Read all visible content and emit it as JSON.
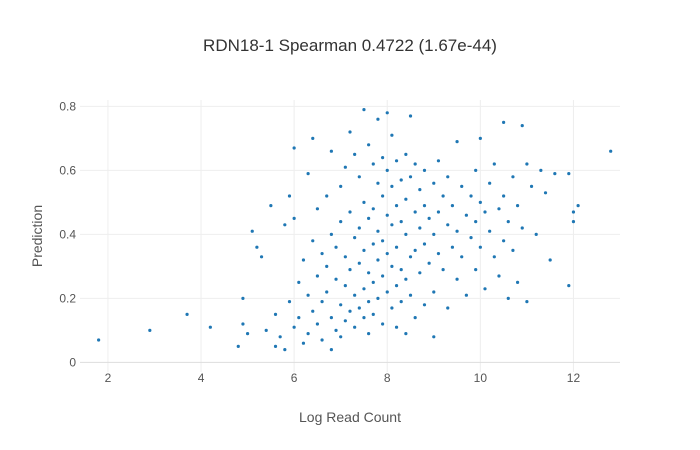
{
  "chart_data": {
    "type": "scatter",
    "title": "RDN18-1 Spearman 0.4722 (1.67e-44)",
    "xlabel": "Log Read Count",
    "ylabel": "Prediction",
    "xlim": [
      1.4,
      13.0
    ],
    "ylim": [
      -0.03,
      0.82
    ],
    "xticks": [
      "2",
      "4",
      "6",
      "8",
      "10",
      "12"
    ],
    "yticks": [
      "0",
      "0.2",
      "0.4",
      "0.6",
      "0.8"
    ],
    "grid": true,
    "legend": "none",
    "marker_color": "#1f77b4",
    "points": [
      {
        "x": 1.8,
        "y": 0.07
      },
      {
        "x": 2.9,
        "y": 0.1
      },
      {
        "x": 3.7,
        "y": 0.15
      },
      {
        "x": 4.2,
        "y": 0.11
      },
      {
        "x": 4.8,
        "y": 0.05
      },
      {
        "x": 4.9,
        "y": 0.2
      },
      {
        "x": 4.9,
        "y": 0.12
      },
      {
        "x": 5.0,
        "y": 0.09
      },
      {
        "x": 5.1,
        "y": 0.41
      },
      {
        "x": 5.2,
        "y": 0.36
      },
      {
        "x": 5.3,
        "y": 0.33
      },
      {
        "x": 5.4,
        "y": 0.1
      },
      {
        "x": 5.5,
        "y": 0.49
      },
      {
        "x": 5.6,
        "y": 0.05
      },
      {
        "x": 5.6,
        "y": 0.15
      },
      {
        "x": 5.7,
        "y": 0.08
      },
      {
        "x": 5.8,
        "y": 0.04
      },
      {
        "x": 5.8,
        "y": 0.43
      },
      {
        "x": 5.9,
        "y": 0.52
      },
      {
        "x": 5.9,
        "y": 0.19
      },
      {
        "x": 6.0,
        "y": 0.45
      },
      {
        "x": 6.0,
        "y": 0.11
      },
      {
        "x": 6.0,
        "y": 0.67
      },
      {
        "x": 6.1,
        "y": 0.25
      },
      {
        "x": 6.1,
        "y": 0.14
      },
      {
        "x": 6.2,
        "y": 0.06
      },
      {
        "x": 6.2,
        "y": 0.32
      },
      {
        "x": 6.3,
        "y": 0.59
      },
      {
        "x": 6.3,
        "y": 0.21
      },
      {
        "x": 6.3,
        "y": 0.09
      },
      {
        "x": 6.4,
        "y": 0.7
      },
      {
        "x": 6.4,
        "y": 0.38
      },
      {
        "x": 6.4,
        "y": 0.16
      },
      {
        "x": 6.5,
        "y": 0.48
      },
      {
        "x": 6.5,
        "y": 0.27
      },
      {
        "x": 6.5,
        "y": 0.12
      },
      {
        "x": 6.6,
        "y": 0.34
      },
      {
        "x": 6.6,
        "y": 0.19
      },
      {
        "x": 6.6,
        "y": 0.07
      },
      {
        "x": 6.7,
        "y": 0.52
      },
      {
        "x": 6.7,
        "y": 0.3
      },
      {
        "x": 6.7,
        "y": 0.22
      },
      {
        "x": 6.8,
        "y": 0.66
      },
      {
        "x": 6.8,
        "y": 0.4
      },
      {
        "x": 6.8,
        "y": 0.14
      },
      {
        "x": 6.8,
        "y": 0.04
      },
      {
        "x": 6.9,
        "y": 0.36
      },
      {
        "x": 6.9,
        "y": 0.26
      },
      {
        "x": 6.9,
        "y": 0.1
      },
      {
        "x": 7.0,
        "y": 0.55
      },
      {
        "x": 7.0,
        "y": 0.44
      },
      {
        "x": 7.0,
        "y": 0.18
      },
      {
        "x": 7.0,
        "y": 0.08
      },
      {
        "x": 7.1,
        "y": 0.61
      },
      {
        "x": 7.1,
        "y": 0.33
      },
      {
        "x": 7.1,
        "y": 0.24
      },
      {
        "x": 7.1,
        "y": 0.13
      },
      {
        "x": 7.2,
        "y": 0.72
      },
      {
        "x": 7.2,
        "y": 0.47
      },
      {
        "x": 7.2,
        "y": 0.29
      },
      {
        "x": 7.2,
        "y": 0.16
      },
      {
        "x": 7.3,
        "y": 0.65
      },
      {
        "x": 7.3,
        "y": 0.39
      },
      {
        "x": 7.3,
        "y": 0.21
      },
      {
        "x": 7.3,
        "y": 0.11
      },
      {
        "x": 7.4,
        "y": 0.58
      },
      {
        "x": 7.4,
        "y": 0.42
      },
      {
        "x": 7.4,
        "y": 0.31
      },
      {
        "x": 7.4,
        "y": 0.17
      },
      {
        "x": 7.5,
        "y": 0.79
      },
      {
        "x": 7.5,
        "y": 0.5
      },
      {
        "x": 7.5,
        "y": 0.35
      },
      {
        "x": 7.5,
        "y": 0.23
      },
      {
        "x": 7.5,
        "y": 0.14
      },
      {
        "x": 7.6,
        "y": 0.68
      },
      {
        "x": 7.6,
        "y": 0.45
      },
      {
        "x": 7.6,
        "y": 0.28
      },
      {
        "x": 7.6,
        "y": 0.19
      },
      {
        "x": 7.6,
        "y": 0.09
      },
      {
        "x": 7.7,
        "y": 0.62
      },
      {
        "x": 7.7,
        "y": 0.48
      },
      {
        "x": 7.7,
        "y": 0.37
      },
      {
        "x": 7.7,
        "y": 0.25
      },
      {
        "x": 7.7,
        "y": 0.15
      },
      {
        "x": 7.8,
        "y": 0.76
      },
      {
        "x": 7.8,
        "y": 0.56
      },
      {
        "x": 7.8,
        "y": 0.41
      },
      {
        "x": 7.8,
        "y": 0.32
      },
      {
        "x": 7.8,
        "y": 0.2
      },
      {
        "x": 7.9,
        "y": 0.64
      },
      {
        "x": 7.9,
        "y": 0.52
      },
      {
        "x": 7.9,
        "y": 0.38
      },
      {
        "x": 7.9,
        "y": 0.27
      },
      {
        "x": 7.9,
        "y": 0.12
      },
      {
        "x": 8.0,
        "y": 0.78
      },
      {
        "x": 8.0,
        "y": 0.6
      },
      {
        "x": 8.0,
        "y": 0.46
      },
      {
        "x": 8.0,
        "y": 0.34
      },
      {
        "x": 8.0,
        "y": 0.22
      },
      {
        "x": 8.1,
        "y": 0.71
      },
      {
        "x": 8.1,
        "y": 0.55
      },
      {
        "x": 8.1,
        "y": 0.43
      },
      {
        "x": 8.1,
        "y": 0.3
      },
      {
        "x": 8.1,
        "y": 0.17
      },
      {
        "x": 8.2,
        "y": 0.63
      },
      {
        "x": 8.2,
        "y": 0.49
      },
      {
        "x": 8.2,
        "y": 0.36
      },
      {
        "x": 8.2,
        "y": 0.24
      },
      {
        "x": 8.2,
        "y": 0.11
      },
      {
        "x": 8.3,
        "y": 0.57
      },
      {
        "x": 8.3,
        "y": 0.44
      },
      {
        "x": 8.3,
        "y": 0.29
      },
      {
        "x": 8.3,
        "y": 0.19
      },
      {
        "x": 8.4,
        "y": 0.65
      },
      {
        "x": 8.4,
        "y": 0.51
      },
      {
        "x": 8.4,
        "y": 0.4
      },
      {
        "x": 8.4,
        "y": 0.26
      },
      {
        "x": 8.4,
        "y": 0.09
      },
      {
        "x": 8.5,
        "y": 0.77
      },
      {
        "x": 8.5,
        "y": 0.58
      },
      {
        "x": 8.5,
        "y": 0.33
      },
      {
        "x": 8.5,
        "y": 0.21
      },
      {
        "x": 8.6,
        "y": 0.62
      },
      {
        "x": 8.6,
        "y": 0.47
      },
      {
        "x": 8.6,
        "y": 0.35
      },
      {
        "x": 8.6,
        "y": 0.14
      },
      {
        "x": 8.7,
        "y": 0.54
      },
      {
        "x": 8.7,
        "y": 0.42
      },
      {
        "x": 8.7,
        "y": 0.28
      },
      {
        "x": 8.8,
        "y": 0.6
      },
      {
        "x": 8.8,
        "y": 0.49
      },
      {
        "x": 8.8,
        "y": 0.37
      },
      {
        "x": 8.8,
        "y": 0.18
      },
      {
        "x": 8.9,
        "y": 0.45
      },
      {
        "x": 8.9,
        "y": 0.31
      },
      {
        "x": 9.0,
        "y": 0.56
      },
      {
        "x": 9.0,
        "y": 0.4
      },
      {
        "x": 9.0,
        "y": 0.22
      },
      {
        "x": 9.0,
        "y": 0.08
      },
      {
        "x": 9.1,
        "y": 0.63
      },
      {
        "x": 9.1,
        "y": 0.47
      },
      {
        "x": 9.1,
        "y": 0.34
      },
      {
        "x": 9.2,
        "y": 0.52
      },
      {
        "x": 9.2,
        "y": 0.29
      },
      {
        "x": 9.3,
        "y": 0.58
      },
      {
        "x": 9.3,
        "y": 0.43
      },
      {
        "x": 9.3,
        "y": 0.17
      },
      {
        "x": 9.4,
        "y": 0.49
      },
      {
        "x": 9.4,
        "y": 0.36
      },
      {
        "x": 9.5,
        "y": 0.69
      },
      {
        "x": 9.5,
        "y": 0.41
      },
      {
        "x": 9.5,
        "y": 0.26
      },
      {
        "x": 9.6,
        "y": 0.55
      },
      {
        "x": 9.6,
        "y": 0.33
      },
      {
        "x": 9.7,
        "y": 0.46
      },
      {
        "x": 9.7,
        "y": 0.21
      },
      {
        "x": 9.8,
        "y": 0.52
      },
      {
        "x": 9.8,
        "y": 0.39
      },
      {
        "x": 9.9,
        "y": 0.6
      },
      {
        "x": 9.9,
        "y": 0.44
      },
      {
        "x": 9.9,
        "y": 0.29
      },
      {
        "x": 10.0,
        "y": 0.7
      },
      {
        "x": 10.0,
        "y": 0.5
      },
      {
        "x": 10.0,
        "y": 0.36
      },
      {
        "x": 10.1,
        "y": 0.47
      },
      {
        "x": 10.1,
        "y": 0.23
      },
      {
        "x": 10.2,
        "y": 0.56
      },
      {
        "x": 10.2,
        "y": 0.41
      },
      {
        "x": 10.3,
        "y": 0.62
      },
      {
        "x": 10.3,
        "y": 0.33
      },
      {
        "x": 10.4,
        "y": 0.48
      },
      {
        "x": 10.4,
        "y": 0.27
      },
      {
        "x": 10.5,
        "y": 0.75
      },
      {
        "x": 10.5,
        "y": 0.52
      },
      {
        "x": 10.5,
        "y": 0.38
      },
      {
        "x": 10.6,
        "y": 0.44
      },
      {
        "x": 10.6,
        "y": 0.2
      },
      {
        "x": 10.7,
        "y": 0.58
      },
      {
        "x": 10.7,
        "y": 0.35
      },
      {
        "x": 10.8,
        "y": 0.49
      },
      {
        "x": 10.8,
        "y": 0.25
      },
      {
        "x": 10.9,
        "y": 0.74
      },
      {
        "x": 10.9,
        "y": 0.42
      },
      {
        "x": 11.0,
        "y": 0.62
      },
      {
        "x": 11.0,
        "y": 0.19
      },
      {
        "x": 11.1,
        "y": 0.55
      },
      {
        "x": 11.2,
        "y": 0.4
      },
      {
        "x": 11.3,
        "y": 0.6
      },
      {
        "x": 11.4,
        "y": 0.53
      },
      {
        "x": 11.5,
        "y": 0.32
      },
      {
        "x": 11.6,
        "y": 0.59
      },
      {
        "x": 11.9,
        "y": 0.24
      },
      {
        "x": 11.9,
        "y": 0.59
      },
      {
        "x": 12.0,
        "y": 0.47
      },
      {
        "x": 12.0,
        "y": 0.44
      },
      {
        "x": 12.1,
        "y": 0.49
      },
      {
        "x": 12.8,
        "y": 0.66
      }
    ]
  }
}
